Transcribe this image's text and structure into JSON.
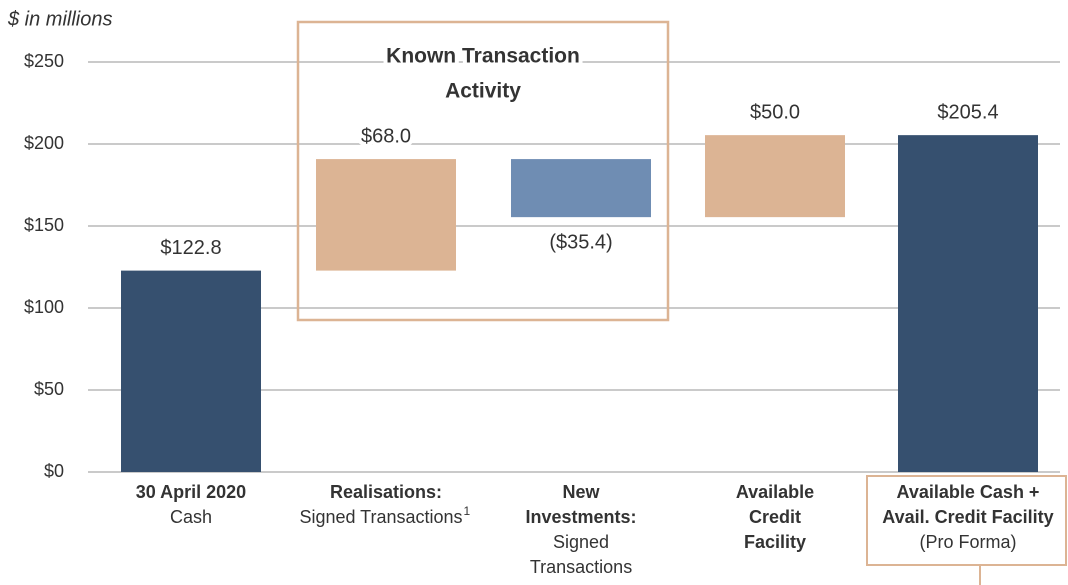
{
  "chart_data": {
    "type": "waterfall",
    "axis_label": "$ in millions",
    "annotation": [
      "Known Transaction",
      "Activity"
    ],
    "categories": [
      {
        "bold": [
          "30 April 2020"
        ],
        "normal": [
          "Cash"
        ]
      },
      {
        "bold": [
          "Realisations:"
        ],
        "normal": [
          "Signed Transactions"
        ],
        "footnote": "1"
      },
      {
        "bold": [
          "New",
          "Investments:"
        ],
        "normal": [
          "Signed",
          "Transactions"
        ]
      },
      {
        "bold": [
          "Available",
          "Credit",
          "Facility"
        ],
        "normal": []
      },
      {
        "bold": [
          "Available Cash +",
          "Avail. Credit Facility"
        ],
        "normal": [
          "(Pro Forma)"
        ]
      }
    ],
    "values": [
      122.8,
      68.0,
      -35.4,
      50.0,
      205.4
    ],
    "value_labels": [
      "$122.8",
      "$68.0",
      "($35.4)",
      "$50.0",
      "$205.4"
    ],
    "kinds": [
      "total",
      "delta",
      "delta",
      "delta",
      "total"
    ],
    "colors": [
      "#36506f",
      "#dcb494",
      "#6f8db3",
      "#dcb494",
      "#36506f"
    ],
    "ylim": [
      0,
      250
    ],
    "yticks": [
      {
        "value": 0,
        "label": "$0"
      },
      {
        "value": 50,
        "label": "$50"
      },
      {
        "value": 100,
        "label": "$100"
      },
      {
        "value": 150,
        "label": "$150"
      },
      {
        "value": 200,
        "label": "$200"
      },
      {
        "value": 250,
        "label": "$250"
      }
    ],
    "grid": true
  }
}
